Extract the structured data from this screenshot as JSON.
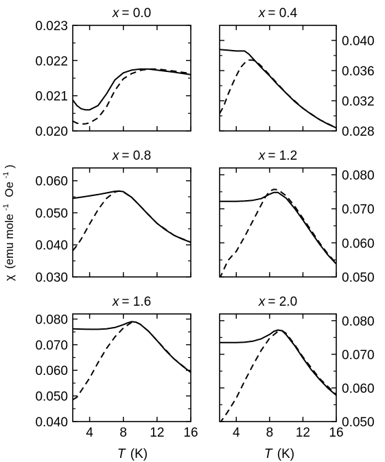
{
  "figure": {
    "ylabel_symbol": "χ",
    "ylabel_units": "(emu mole",
    "ylabel_exp": "-1",
    "ylabel_oe": "Oe",
    "ylabel_oe_exp": "-1",
    "ylabel_close": ")",
    "xlabel_var": "T",
    "xlabel_units": "(K)"
  },
  "chart_data": [
    {
      "type": "line",
      "title_var": "x",
      "title": "x = 0.0",
      "title_value": "= 0.0",
      "xlim": [
        2,
        16
      ],
      "ylim": [
        0.02,
        0.023
      ],
      "xticks": [
        4,
        8,
        12,
        16
      ],
      "xtick_labels": [
        "",
        "",
        "",
        ""
      ],
      "yticks": [
        0.02,
        0.021,
        0.022,
        0.023
      ],
      "ytick_labels": [
        "0.020",
        "0.021",
        "0.022",
        "0.023"
      ],
      "y_axis_side": "left",
      "series": [
        {
          "style": "solid",
          "x": [
            2,
            2.5,
            3,
            3.5,
            4,
            5,
            6,
            7,
            8,
            9,
            10,
            11,
            12,
            14,
            16
          ],
          "y": [
            0.02088,
            0.02072,
            0.02063,
            0.0206,
            0.0206,
            0.02072,
            0.02105,
            0.02145,
            0.02165,
            0.02173,
            0.02176,
            0.02176,
            0.02173,
            0.02167,
            0.0216
          ]
        },
        {
          "style": "dashed",
          "x": [
            2,
            2.5,
            3,
            3.5,
            4,
            5,
            6,
            7,
            8,
            9,
            10,
            11,
            12,
            14,
            16
          ],
          "y": [
            0.02028,
            0.02022,
            0.0202,
            0.0202,
            0.02023,
            0.02037,
            0.02068,
            0.02115,
            0.02148,
            0.02163,
            0.02172,
            0.02176,
            0.02176,
            0.0217,
            0.02163
          ]
        }
      ]
    },
    {
      "type": "line",
      "title_var": "x",
      "title": "x = 0.4",
      "title_value": "= 0.4",
      "xlim": [
        2,
        16
      ],
      "ylim": [
        0.028,
        0.042
      ],
      "xticks": [
        4,
        8,
        12,
        16
      ],
      "xtick_labels": [
        "",
        "",
        "",
        ""
      ],
      "yticks": [
        0.028,
        0.032,
        0.036,
        0.04
      ],
      "ytick_labels": [
        "0.028",
        "0.032",
        "0.036",
        "0.040"
      ],
      "y_axis_side": "right",
      "series": [
        {
          "style": "solid",
          "x": [
            2,
            3,
            4,
            5,
            5.5,
            6,
            7,
            8,
            9,
            10,
            11,
            12,
            13,
            14,
            15,
            16
          ],
          "y": [
            0.0388,
            0.0387,
            0.0386,
            0.0386,
            0.0382,
            0.0376,
            0.0364,
            0.0353,
            0.0341,
            0.033,
            0.0319,
            0.031,
            0.0302,
            0.0295,
            0.0289,
            0.0284
          ]
        },
        {
          "style": "dashed",
          "x": [
            2,
            2.5,
            3,
            3.5,
            4,
            4.5,
            5,
            5.5,
            6,
            6.5,
            7,
            8,
            9,
            10,
            12,
            14,
            16
          ],
          "y": [
            0.0303,
            0.0313,
            0.0328,
            0.0341,
            0.0353,
            0.0364,
            0.037,
            0.0374,
            0.0374,
            0.0371,
            0.0366,
            0.0354,
            0.0342,
            0.033,
            0.031,
            0.0295,
            0.0284
          ]
        }
      ]
    },
    {
      "type": "line",
      "title_var": "x",
      "title": "x = 0.8",
      "title_value": "= 0.8",
      "xlim": [
        2,
        16
      ],
      "ylim": [
        0.03,
        0.064
      ],
      "xticks": [
        4,
        8,
        12,
        16
      ],
      "xtick_labels": [
        "",
        "",
        "",
        ""
      ],
      "yticks": [
        0.03,
        0.04,
        0.05,
        0.06
      ],
      "ytick_labels": [
        "0.030",
        "0.040",
        "0.050",
        "0.060"
      ],
      "y_axis_side": "left",
      "series": [
        {
          "style": "solid",
          "x": [
            2,
            3,
            4,
            5,
            6,
            7,
            7.5,
            8,
            9,
            10,
            11,
            12,
            13,
            14,
            15,
            16
          ],
          "y": [
            0.0545,
            0.0549,
            0.0553,
            0.0557,
            0.0562,
            0.0567,
            0.0568,
            0.0566,
            0.0548,
            0.0521,
            0.0493,
            0.0467,
            0.0447,
            0.043,
            0.0418,
            0.0408
          ]
        },
        {
          "style": "dashed",
          "x": [
            2,
            2.5,
            3,
            4,
            5,
            6,
            7,
            7.5,
            8,
            9,
            10,
            12,
            14,
            16
          ],
          "y": [
            0.0382,
            0.0398,
            0.0418,
            0.0465,
            0.051,
            0.0545,
            0.0565,
            0.0568,
            0.0565,
            0.0548,
            0.0521,
            0.0467,
            0.043,
            0.0408
          ]
        }
      ]
    },
    {
      "type": "line",
      "title_var": "x",
      "title": "x = 1.2",
      "title_value": "= 1.2",
      "xlim": [
        2,
        16
      ],
      "ylim": [
        0.05,
        0.082
      ],
      "xticks": [
        4,
        8,
        12,
        16
      ],
      "xtick_labels": [
        "",
        "",
        "",
        ""
      ],
      "yticks": [
        0.05,
        0.06,
        0.07,
        0.08
      ],
      "ytick_labels": [
        "0.050",
        "0.060",
        "0.070",
        "0.080"
      ],
      "y_axis_side": "right",
      "series": [
        {
          "style": "solid",
          "x": [
            2,
            3,
            4,
            5,
            6,
            7,
            8,
            8.5,
            9,
            10,
            11,
            12,
            13,
            14,
            15,
            16
          ],
          "y": [
            0.0722,
            0.0722,
            0.0722,
            0.0723,
            0.0725,
            0.073,
            0.0743,
            0.0748,
            0.0748,
            0.0731,
            0.0701,
            0.0667,
            0.0631,
            0.0596,
            0.0564,
            0.0538
          ]
        },
        {
          "style": "dashed",
          "x": [
            2,
            2.5,
            3,
            3.5,
            4,
            5,
            6,
            7,
            7.5,
            8,
            8.5,
            9,
            10,
            11,
            12,
            13,
            14,
            15,
            16
          ],
          "y": [
            0.0495,
            0.0522,
            0.0548,
            0.0562,
            0.0575,
            0.0618,
            0.0665,
            0.0712,
            0.0735,
            0.0752,
            0.0757,
            0.0756,
            0.0738,
            0.0708,
            0.0672,
            0.0636,
            0.06,
            0.0567,
            0.054
          ]
        }
      ]
    },
    {
      "type": "line",
      "title_var": "x",
      "title": "x = 1.6",
      "title_value": "= 1.6",
      "xlim": [
        2,
        16
      ],
      "ylim": [
        0.04,
        0.082
      ],
      "xticks": [
        4,
        8,
        12,
        16
      ],
      "xtick_labels": [
        "4",
        "8",
        "12",
        "16"
      ],
      "yticks": [
        0.04,
        0.05,
        0.06,
        0.07,
        0.08
      ],
      "ytick_labels": [
        "0.040",
        "0.050",
        "0.060",
        "0.070",
        "0.080"
      ],
      "y_axis_side": "left",
      "series": [
        {
          "style": "solid",
          "x": [
            2,
            3,
            4,
            5,
            6,
            7,
            8,
            8.5,
            9,
            9.5,
            10,
            11,
            12,
            13,
            14,
            15,
            16
          ],
          "y": [
            0.0762,
            0.0761,
            0.076,
            0.076,
            0.0762,
            0.0767,
            0.0778,
            0.0785,
            0.079,
            0.0788,
            0.078,
            0.0752,
            0.0716,
            0.0678,
            0.0645,
            0.0617,
            0.0592
          ]
        },
        {
          "style": "dashed",
          "x": [
            2,
            2.5,
            3,
            4,
            5,
            6,
            7,
            8,
            9,
            9.5,
            10,
            11,
            12,
            14,
            16
          ],
          "y": [
            0.0485,
            0.0495,
            0.052,
            0.057,
            0.063,
            0.0685,
            0.073,
            0.0765,
            0.0788,
            0.0788,
            0.078,
            0.0752,
            0.0716,
            0.0645,
            0.0592
          ]
        }
      ]
    },
    {
      "type": "line",
      "title_var": "x",
      "title": "x = 2.0",
      "title_value": "= 2.0",
      "xlim": [
        2,
        16
      ],
      "ylim": [
        0.05,
        0.082
      ],
      "xticks": [
        4,
        8,
        12,
        16
      ],
      "xtick_labels": [
        "4",
        "8",
        "12",
        "16"
      ],
      "yticks": [
        0.05,
        0.06,
        0.07,
        0.08
      ],
      "ytick_labels": [
        "0.050",
        "0.060",
        "0.070",
        "0.080"
      ],
      "y_axis_side": "right",
      "series": [
        {
          "style": "solid",
          "x": [
            2,
            3,
            4,
            5,
            6,
            7,
            8,
            8.5,
            9,
            9.5,
            10,
            11,
            12,
            13,
            14,
            15,
            16
          ],
          "y": [
            0.0735,
            0.0735,
            0.0735,
            0.0736,
            0.0739,
            0.0746,
            0.0759,
            0.0768,
            0.0772,
            0.077,
            0.0758,
            0.0726,
            0.0689,
            0.0654,
            0.0625,
            0.0599,
            0.0578
          ]
        },
        {
          "style": "dashed",
          "x": [
            2,
            2.5,
            3,
            4,
            5,
            6,
            7,
            8,
            9,
            9.5,
            10,
            11,
            12,
            14,
            16
          ],
          "y": [
            0.0495,
            0.0512,
            0.053,
            0.057,
            0.062,
            0.0668,
            0.0712,
            0.0748,
            0.0768,
            0.077,
            0.0762,
            0.0729,
            0.0692,
            0.0628,
            0.058
          ]
        }
      ]
    }
  ]
}
